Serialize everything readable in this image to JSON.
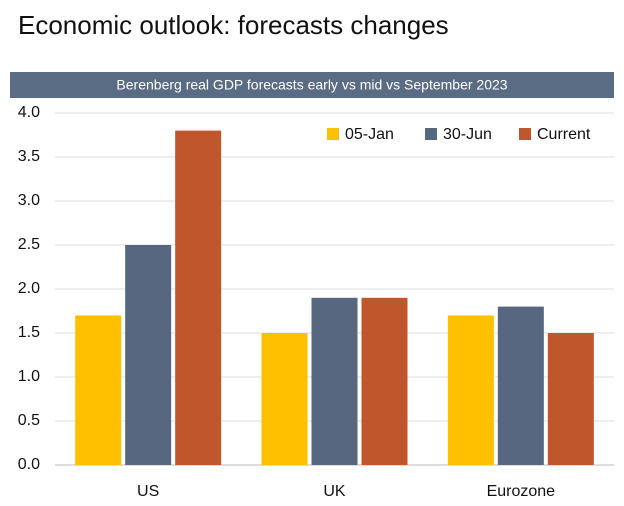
{
  "chart_data": {
    "type": "bar",
    "title": "Economic outlook: forecasts changes",
    "subtitle": "Berenberg real GDP forecasts early vs mid vs September 2023",
    "categories": [
      "US",
      "UK",
      "Eurozone"
    ],
    "series": [
      {
        "name": "05-Jan",
        "color": "#ffc000",
        "values": [
          1.7,
          1.5,
          1.7
        ]
      },
      {
        "name": "30-Jun",
        "color": "#586780",
        "values": [
          2.5,
          1.9,
          1.8
        ]
      },
      {
        "name": "Current",
        "color": "#c0562b",
        "values": [
          3.8,
          1.9,
          1.5
        ]
      }
    ],
    "ylim": [
      0,
      4
    ],
    "yticks": [
      {
        "value": 0,
        "label": "0.0"
      },
      0.5,
      {
        "value": 1,
        "label": "1.0"
      },
      1.5,
      {
        "value": 2,
        "label": "2.0"
      },
      2.5,
      {
        "value": 3,
        "label": "3.0"
      },
      3.5,
      {
        "value": 4,
        "label": "4.0"
      }
    ],
    "grid": true,
    "legend": "top-right"
  }
}
